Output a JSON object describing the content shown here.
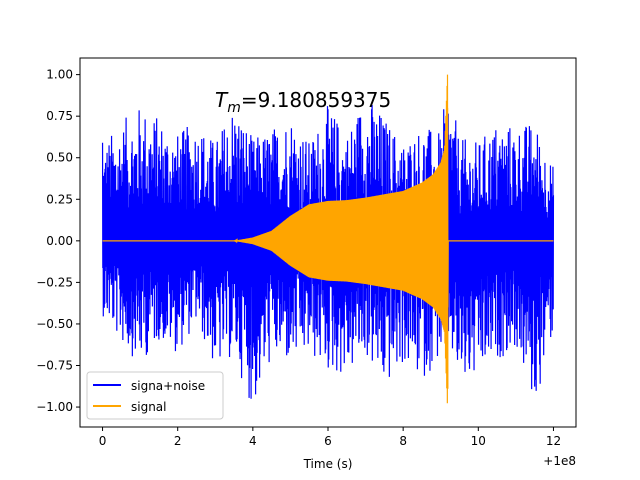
{
  "chart_data": {
    "type": "line",
    "title": "",
    "annotation": {
      "label_math": "T",
      "label_sub": "m",
      "label_rest": "=9.180859375"
    },
    "xlabel": "Time (s)",
    "ylabel": "",
    "offset_text": "+1e8",
    "xlim": [
      -0.6,
      12.6
    ],
    "ylim": [
      -1.12,
      1.1
    ],
    "x_ticks": [
      0,
      2,
      4,
      6,
      8,
      10,
      12
    ],
    "x_tick_labels": [
      "0",
      "2",
      "4",
      "6",
      "8",
      "10",
      "12"
    ],
    "y_ticks": [
      -1.0,
      -0.75,
      -0.5,
      -0.25,
      0.0,
      0.25,
      0.5,
      0.75,
      1.0
    ],
    "y_tick_labels": [
      "−1.00",
      "−0.75",
      "−0.50",
      "−0.25",
      "0.00",
      "0.25",
      "0.50",
      "0.75",
      "1.00"
    ],
    "grid": false,
    "legend_position": "lower-left",
    "series": [
      {
        "name": "signa+noise",
        "color": "#0000ff",
        "x": [
          0,
          0.5,
          1,
          1.5,
          2,
          2.5,
          3,
          3.5,
          4,
          4.5,
          5,
          5.5,
          6,
          6.5,
          7,
          7.5,
          8,
          8.5,
          9,
          9.18,
          9.5,
          10,
          10.5,
          11,
          11.5,
          12
        ],
        "upper": [
          0.59,
          0.72,
          0.82,
          0.75,
          0.65,
          0.73,
          0.6,
          0.85,
          0.62,
          0.68,
          0.78,
          0.6,
          0.82,
          0.66,
          0.9,
          0.75,
          0.6,
          0.7,
          0.65,
          0.97,
          0.62,
          0.6,
          0.72,
          0.7,
          0.72,
          0.45
        ],
        "lower": [
          -0.45,
          -0.62,
          -0.75,
          -0.6,
          -0.68,
          -0.5,
          -0.78,
          -0.7,
          -1.02,
          -0.72,
          -0.75,
          -0.7,
          -0.8,
          -0.82,
          -0.7,
          -0.9,
          -0.75,
          -0.85,
          -0.7,
          -0.6,
          -0.9,
          -0.85,
          -0.72,
          -0.65,
          -1.01,
          -0.55
        ]
      },
      {
        "name": "signal",
        "color": "#ffa500",
        "envelope_x": [
          0,
          3.5,
          4,
          4.5,
          5,
          5.5,
          6,
          6.5,
          7,
          7.5,
          8,
          8.5,
          8.8,
          9.0,
          9.1,
          9.18,
          9.2,
          12
        ],
        "envelope_y": [
          0.0,
          0.0,
          0.02,
          0.06,
          0.15,
          0.22,
          0.24,
          0.245,
          0.26,
          0.28,
          0.3,
          0.35,
          0.4,
          0.47,
          0.55,
          1.0,
          0.0,
          0.0
        ],
        "min_y": -0.89
      }
    ]
  }
}
